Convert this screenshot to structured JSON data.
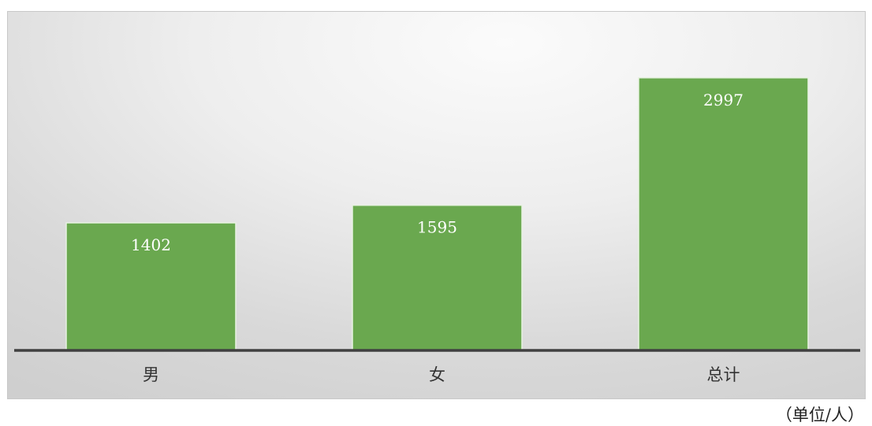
{
  "chart_data": {
    "type": "bar",
    "categories": [
      "男",
      "女",
      "总计"
    ],
    "values": [
      1402,
      1595,
      2997
    ],
    "ylim": [
      0,
      3350
    ],
    "title": "",
    "xlabel": "",
    "ylabel": "",
    "grid": false,
    "legend": "none",
    "data_labels": [
      "1402",
      "1595",
      "2997"
    ],
    "bar_color": "#6aa84f",
    "bar_edge_color": "#e8f2e2",
    "baseline_color": "#404040",
    "label_color": "#ffffff",
    "axis_label_color": "#333333"
  },
  "unit_label": "（单位/人）"
}
